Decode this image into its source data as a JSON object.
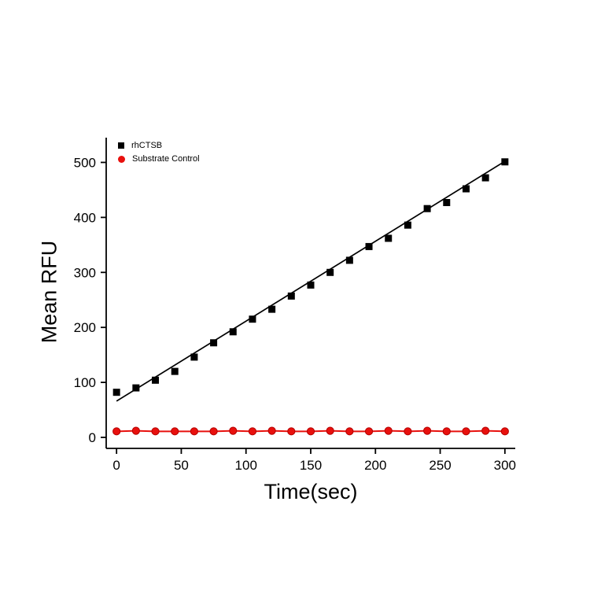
{
  "figure": {
    "background": "#ffffff"
  },
  "legend": {
    "items": [
      {
        "label": "rhCTSB",
        "marker": "square",
        "color": "#000000"
      },
      {
        "label": "Substrate Control",
        "marker": "circle",
        "color": "#e8100d"
      }
    ]
  },
  "chart_data": {
    "type": "scatter",
    "title": "",
    "xlabel": "Time(sec)",
    "ylabel": "Mean RFU",
    "xlim": [
      -8,
      308
    ],
    "ylim": [
      -20,
      545
    ],
    "xticks": [
      0,
      50,
      100,
      150,
      200,
      250,
      300
    ],
    "yticks": [
      0,
      100,
      200,
      300,
      400,
      500
    ],
    "grid": false,
    "legend_position": "top-left-inside",
    "x": [
      0,
      15,
      30,
      45,
      60,
      75,
      90,
      105,
      120,
      135,
      150,
      165,
      180,
      195,
      210,
      225,
      240,
      255,
      270,
      285,
      300
    ],
    "series": [
      {
        "name": "rhCTSB",
        "marker": "square",
        "color": "#000000",
        "values": [
          82,
          90,
          104,
          120,
          146,
          172,
          192,
          215,
          233,
          257,
          277,
          300,
          322,
          347,
          362,
          386,
          416,
          427,
          452,
          472,
          501
        ],
        "fit_line": {
          "x": [
            0,
            300
          ],
          "y": [
            66,
            502
          ]
        }
      },
      {
        "name": "Substrate Control",
        "marker": "circle",
        "color": "#e8100d",
        "edge": "#b50000",
        "connect": true,
        "values": [
          11,
          12,
          11,
          11,
          11,
          11,
          12,
          11,
          12,
          11,
          11,
          12,
          11,
          11,
          12,
          11,
          12,
          11,
          11,
          12,
          11
        ]
      }
    ]
  }
}
